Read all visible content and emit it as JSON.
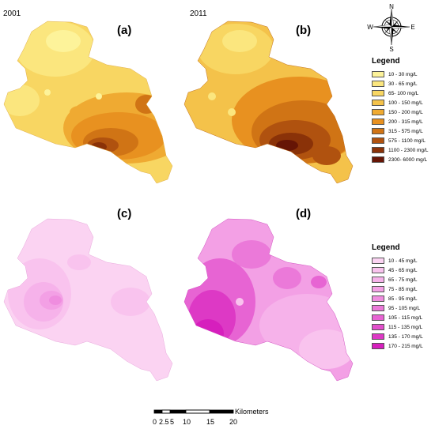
{
  "year_2001": "2001",
  "year_2011": "2011",
  "panels": {
    "a": "(a)",
    "b": "(b)",
    "c": "(c)",
    "d": "(d)"
  },
  "compass": {
    "n": "N",
    "s": "S",
    "e": "E",
    "w": "W"
  },
  "legend_top": {
    "title": "Legend",
    "items": [
      {
        "label": "10 - 30 mg/L",
        "color": "#fdf39a"
      },
      {
        "label": "30 - 65 mg/L",
        "color": "#fbe67e"
      },
      {
        "label": "65- 100 mg/L",
        "color": "#f8d662"
      },
      {
        "label": "100 - 150 mg/L",
        "color": "#f4c24a"
      },
      {
        "label": "150 - 200 mg/L",
        "color": "#efaa32"
      },
      {
        "label": "200 - 315 mg/L",
        "color": "#e89120"
      },
      {
        "label": "315 - 575 mg/L",
        "color": "#d07415"
      },
      {
        "label": "575 - 1100 mg/L",
        "color": "#b0520f"
      },
      {
        "label": "1100 - 2300 mg/L",
        "color": "#8a3208"
      },
      {
        "label": "2300- 6000 mg/L",
        "color": "#661505"
      }
    ]
  },
  "legend_bottom": {
    "title": "Legend",
    "items": [
      {
        "label": "10 - 45 mg/L",
        "color": "#fbd3f2"
      },
      {
        "label": "45 - 65 mg/L",
        "color": "#f9c3ee"
      },
      {
        "label": "65 - 75 mg/L",
        "color": "#f6b2ea"
      },
      {
        "label": "75 - 85 mg/L",
        "color": "#f3a0e5"
      },
      {
        "label": "85 - 95 mg/L",
        "color": "#ef8ddf"
      },
      {
        "label": "95 - 105 mg/L",
        "color": "#eb79d9"
      },
      {
        "label": "105 - 115 mg/L",
        "color": "#e764d3"
      },
      {
        "label": "115 - 135 mg/L",
        "color": "#e24fcc"
      },
      {
        "label": "135 - 170 mg/L",
        "color": "#dd39c5"
      },
      {
        "label": "170 - 215 mg/L",
        "color": "#d61fbd"
      }
    ]
  },
  "scale_bar": {
    "unit": "Kilometers",
    "ticks": [
      "0",
      "2.5",
      "5",
      "10",
      "15",
      "20"
    ]
  }
}
